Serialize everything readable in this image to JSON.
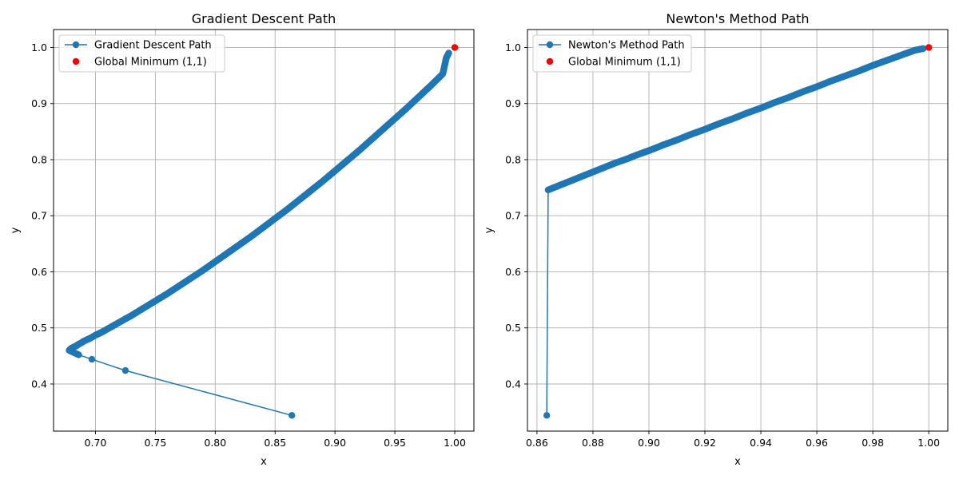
{
  "chart_data": [
    {
      "type": "line",
      "title": "Gradient Descent Path",
      "xlabel": "x",
      "ylabel": "y",
      "xlim": [
        0.665,
        1.016
      ],
      "ylim": [
        0.316,
        1.032
      ],
      "xticks": [
        "0.70",
        "0.75",
        "0.80",
        "0.85",
        "0.90",
        "0.95",
        "1.00"
      ],
      "yticks": [
        "0.4",
        "0.5",
        "0.6",
        "0.7",
        "0.8",
        "0.9",
        "1.0"
      ],
      "grid": true,
      "legend_position": "top-left",
      "series": [
        {
          "name": "Gradient Descent Path",
          "color": "#1f77b4",
          "marker": "circle",
          "x": [
            0.864,
            0.725,
            0.697,
            0.686,
            0.682,
            0.68,
            0.679,
            0.678,
            0.679,
            0.68,
            0.682,
            0.684,
            0.686,
            0.688,
            0.69,
            0.693,
            0.696,
            0.7,
            0.705,
            0.71,
            0.715,
            0.72,
            0.73,
            0.74,
            0.75,
            0.76,
            0.77,
            0.78,
            0.79,
            0.8,
            0.81,
            0.82,
            0.83,
            0.84,
            0.85,
            0.86,
            0.87,
            0.88,
            0.89,
            0.9,
            0.91,
            0.92,
            0.93,
            0.94,
            0.95,
            0.96,
            0.97,
            0.98,
            0.99,
            0.993,
            0.995
          ],
          "y": [
            0.344,
            0.424,
            0.444,
            0.452,
            0.456,
            0.458,
            0.459,
            0.46,
            0.462,
            0.464,
            0.466,
            0.468,
            0.471,
            0.473,
            0.476,
            0.479,
            0.482,
            0.487,
            0.492,
            0.498,
            0.504,
            0.51,
            0.522,
            0.535,
            0.548,
            0.561,
            0.575,
            0.589,
            0.603,
            0.618,
            0.633,
            0.648,
            0.663,
            0.679,
            0.695,
            0.711,
            0.728,
            0.745,
            0.762,
            0.78,
            0.798,
            0.816,
            0.835,
            0.854,
            0.873,
            0.892,
            0.912,
            0.932,
            0.953,
            0.982,
            0.99
          ]
        },
        {
          "name": "Global Minimum (1,1)",
          "color": "#ff0000",
          "marker": "point",
          "x": [
            1.0
          ],
          "y": [
            1.0
          ]
        }
      ]
    },
    {
      "type": "line",
      "title": "Newton's Method Path",
      "xlabel": "x",
      "ylabel": "y",
      "xlim": [
        0.8566,
        1.0068
      ],
      "ylim": [
        0.316,
        1.032
      ],
      "xticks": [
        "0.86",
        "0.88",
        "0.90",
        "0.92",
        "0.94",
        "0.96",
        "0.98",
        "1.00"
      ],
      "yticks": [
        "0.4",
        "0.5",
        "0.6",
        "0.7",
        "0.8",
        "0.9",
        "1.0"
      ],
      "grid": true,
      "legend_position": "top-left",
      "series": [
        {
          "name": "Newton's Method Path",
          "color": "#1f77b4",
          "marker": "circle",
          "x": [
            0.8635,
            0.864,
            0.866,
            0.868,
            0.87,
            0.873,
            0.876,
            0.88,
            0.884,
            0.888,
            0.892,
            0.896,
            0.9,
            0.905,
            0.91,
            0.915,
            0.92,
            0.925,
            0.93,
            0.935,
            0.94,
            0.945,
            0.95,
            0.955,
            0.96,
            0.965,
            0.97,
            0.975,
            0.98,
            0.985,
            0.99,
            0.995,
            0.998
          ],
          "y": [
            0.344,
            0.746,
            0.75,
            0.754,
            0.758,
            0.764,
            0.77,
            0.778,
            0.786,
            0.794,
            0.801,
            0.809,
            0.816,
            0.826,
            0.835,
            0.845,
            0.854,
            0.864,
            0.873,
            0.883,
            0.892,
            0.902,
            0.911,
            0.921,
            0.93,
            0.94,
            0.949,
            0.958,
            0.968,
            0.977,
            0.986,
            0.995,
            0.998
          ]
        },
        {
          "name": "Global Minimum (1,1)",
          "color": "#ff0000",
          "marker": "point",
          "x": [
            1.0
          ],
          "y": [
            1.0
          ]
        }
      ]
    }
  ]
}
